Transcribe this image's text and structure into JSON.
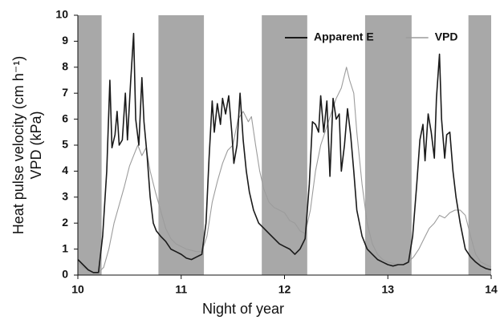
{
  "chart_data": {
    "type": "line",
    "x_label": "Night of year",
    "y_label_lines": [
      "Heat pulse velocity (cm h⁻¹)",
      "VPD (kPa)"
    ],
    "xlim": [
      10,
      14
    ],
    "ylim": [
      0,
      10
    ],
    "xticks": [
      10,
      11,
      12,
      13,
      14
    ],
    "yticks": [
      0,
      1,
      2,
      3,
      4,
      5,
      6,
      7,
      8,
      9,
      10
    ],
    "legend": "upper right",
    "shade_color": "#a8a8a8",
    "shaded_regions": [
      [
        10,
        10.23
      ],
      [
        10.78,
        11.22
      ],
      [
        11.78,
        12.22
      ],
      [
        12.78,
        13.23
      ],
      [
        13.78,
        14
      ]
    ],
    "series": [
      {
        "name": "Apparent E",
        "color": "#1a1a1a",
        "width": 1.6,
        "x": [
          10.0,
          10.05,
          10.1,
          10.15,
          10.2,
          10.24,
          10.28,
          10.31,
          10.33,
          10.36,
          10.38,
          10.4,
          10.43,
          10.46,
          10.48,
          10.51,
          10.54,
          10.56,
          10.59,
          10.62,
          10.64,
          10.67,
          10.7,
          10.73,
          10.76,
          10.8,
          10.85,
          10.9,
          10.95,
          11.0,
          11.05,
          11.1,
          11.15,
          11.2,
          11.24,
          11.27,
          11.3,
          11.32,
          11.35,
          11.38,
          11.4,
          11.43,
          11.46,
          11.49,
          11.51,
          11.54,
          11.57,
          11.6,
          11.63,
          11.66,
          11.7,
          11.75,
          11.8,
          11.85,
          11.9,
          11.95,
          12.0,
          12.05,
          12.1,
          12.15,
          12.2,
          12.24,
          12.27,
          12.3,
          12.33,
          12.35,
          12.38,
          12.41,
          12.44,
          12.47,
          12.5,
          12.53,
          12.55,
          12.58,
          12.61,
          12.64,
          12.67,
          12.7,
          12.75,
          12.8,
          12.85,
          12.9,
          12.95,
          13.0,
          13.05,
          13.1,
          13.15,
          13.2,
          13.24,
          13.28,
          13.31,
          13.34,
          13.36,
          13.39,
          13.42,
          13.45,
          13.47,
          13.5,
          13.52,
          13.55,
          13.57,
          13.6,
          13.63,
          13.66,
          13.7,
          13.75,
          13.8,
          13.85,
          13.9,
          13.95,
          14.0
        ],
        "values": [
          0.6,
          0.4,
          0.2,
          0.1,
          0.1,
          1.5,
          4.0,
          7.5,
          4.9,
          5.4,
          6.3,
          5.0,
          5.2,
          7.0,
          5.2,
          7.4,
          9.3,
          6.0,
          5.0,
          7.6,
          5.9,
          4.6,
          3.0,
          2.0,
          1.7,
          1.5,
          1.3,
          1.0,
          0.9,
          0.8,
          0.65,
          0.6,
          0.7,
          0.8,
          2.0,
          4.5,
          6.7,
          5.5,
          6.6,
          5.8,
          6.8,
          6.2,
          6.9,
          5.5,
          4.3,
          5.0,
          7.0,
          5.2,
          4.0,
          3.2,
          2.5,
          2.0,
          1.8,
          1.6,
          1.4,
          1.2,
          1.1,
          1.0,
          0.8,
          1.0,
          1.4,
          3.5,
          5.9,
          5.8,
          5.5,
          6.9,
          5.5,
          6.7,
          3.8,
          6.8,
          6.0,
          6.2,
          4.0,
          5.0,
          6.4,
          5.4,
          4.0,
          2.5,
          1.5,
          1.0,
          0.8,
          0.6,
          0.5,
          0.4,
          0.35,
          0.4,
          0.4,
          0.5,
          1.5,
          3.5,
          5.2,
          5.8,
          4.4,
          6.2,
          5.5,
          4.5,
          6.8,
          8.5,
          6.0,
          4.5,
          5.4,
          5.5,
          4.0,
          3.0,
          2.0,
          1.0,
          0.7,
          0.5,
          0.35,
          0.25,
          0.2
        ]
      },
      {
        "name": "VPD",
        "color": "#9c9c9c",
        "width": 1.1,
        "x": [
          10.0,
          10.05,
          10.1,
          10.15,
          10.2,
          10.25,
          10.3,
          10.35,
          10.4,
          10.45,
          10.5,
          10.55,
          10.58,
          10.62,
          10.66,
          10.7,
          10.75,
          10.8,
          10.85,
          10.9,
          10.95,
          11.0,
          11.05,
          11.1,
          11.15,
          11.2,
          11.25,
          11.3,
          11.35,
          11.4,
          11.45,
          11.5,
          11.55,
          11.6,
          11.65,
          11.68,
          11.72,
          11.76,
          11.8,
          11.85,
          11.9,
          11.95,
          12.0,
          12.05,
          12.1,
          12.15,
          12.2,
          12.25,
          12.3,
          12.35,
          12.4,
          12.45,
          12.5,
          12.55,
          12.6,
          12.63,
          12.67,
          12.7,
          12.75,
          12.8,
          12.85,
          12.9,
          12.95,
          13.0,
          13.05,
          13.1,
          13.15,
          13.2,
          13.25,
          13.3,
          13.35,
          13.4,
          13.45,
          13.5,
          13.55,
          13.6,
          13.65,
          13.7,
          13.75,
          13.8,
          13.85,
          13.9,
          13.95,
          14.0
        ],
        "values": [
          0.5,
          0.3,
          0.2,
          0.1,
          0.1,
          0.3,
          1.0,
          2.0,
          2.7,
          3.4,
          4.2,
          4.7,
          5.0,
          4.6,
          4.9,
          4.0,
          3.2,
          2.5,
          1.8,
          1.4,
          1.2,
          1.1,
          1.0,
          0.95,
          0.9,
          0.9,
          1.5,
          2.8,
          3.6,
          4.3,
          4.8,
          5.0,
          6.0,
          6.3,
          5.9,
          6.1,
          5.0,
          4.0,
          3.3,
          2.8,
          2.6,
          2.5,
          2.4,
          2.1,
          2.0,
          1.7,
          1.6,
          2.5,
          4.0,
          5.0,
          5.6,
          6.2,
          6.8,
          7.2,
          8.0,
          7.5,
          7.0,
          5.5,
          3.5,
          2.0,
          1.2,
          0.8,
          0.6,
          0.5,
          0.45,
          0.4,
          0.4,
          0.5,
          0.7,
          1.0,
          1.4,
          1.8,
          2.0,
          2.3,
          2.2,
          2.4,
          2.5,
          2.5,
          2.3,
          1.5,
          0.8,
          0.5,
          0.4,
          0.3
        ]
      }
    ]
  }
}
